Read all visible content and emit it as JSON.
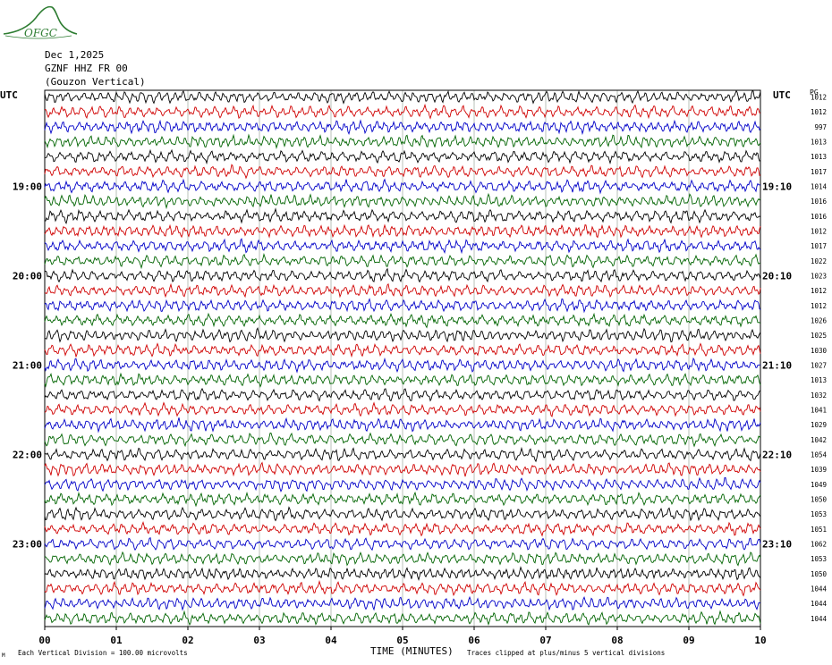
{
  "header": {
    "logo_text": "OFGC",
    "date": "Dec 1,2025",
    "station": "GZNF HHZ FR 00",
    "location": "(Gouzon Vertical)",
    "utc_left": "UTC",
    "utc_right": "UTC",
    "pg_label": "PG"
  },
  "footer": {
    "xlabel": "TIME (MINUTES)",
    "scale_note": "Each Vertical Division =  100.00 microvolts",
    "clip_note": "Traces clipped at plus/minus 5 vertical divisions",
    "corner_mark": "M"
  },
  "colors": {
    "trace_cycle": [
      "#000000",
      "#d00000",
      "#0000c8",
      "#006400"
    ],
    "grid": "#9aa89a",
    "frame": "#000000",
    "logo": "#2e7d32"
  },
  "chart_data": {
    "type": "line",
    "x_ticks": [
      "00",
      "01",
      "02",
      "03",
      "04",
      "05",
      "06",
      "07",
      "08",
      "09",
      "10"
    ],
    "xlim": [
      0,
      10
    ],
    "left_hour_labels": [
      {
        "row": 6,
        "label": "19:00"
      },
      {
        "row": 12,
        "label": "20:00"
      },
      {
        "row": 18,
        "label": "21:00"
      },
      {
        "row": 24,
        "label": "22:00"
      },
      {
        "row": 30,
        "label": "23:00"
      }
    ],
    "right_hour_labels": [
      {
        "row": 6,
        "label": "19:10"
      },
      {
        "row": 12,
        "label": "20:10"
      },
      {
        "row": 18,
        "label": "21:10"
      },
      {
        "row": 24,
        "label": "22:10"
      },
      {
        "row": 30,
        "label": "23:10"
      }
    ],
    "row_values": [
      "1012",
      "1012",
      "997",
      "1013",
      "1013",
      "1017",
      "1014",
      "1016",
      "1016",
      "1012",
      "1017",
      "1022",
      "1023",
      "1012",
      "1012",
      "1026",
      "1025",
      "1030",
      "1027",
      "1013",
      "1032",
      "1041",
      "1029",
      "1042",
      "1054",
      "1039",
      "1049",
      "1050",
      "1053",
      "1051",
      "1062",
      "1053",
      "1050",
      "1044",
      "1044",
      "1044"
    ],
    "rows": 36,
    "grid": true,
    "clipping": "plus/minus 5 vertical divisions"
  }
}
